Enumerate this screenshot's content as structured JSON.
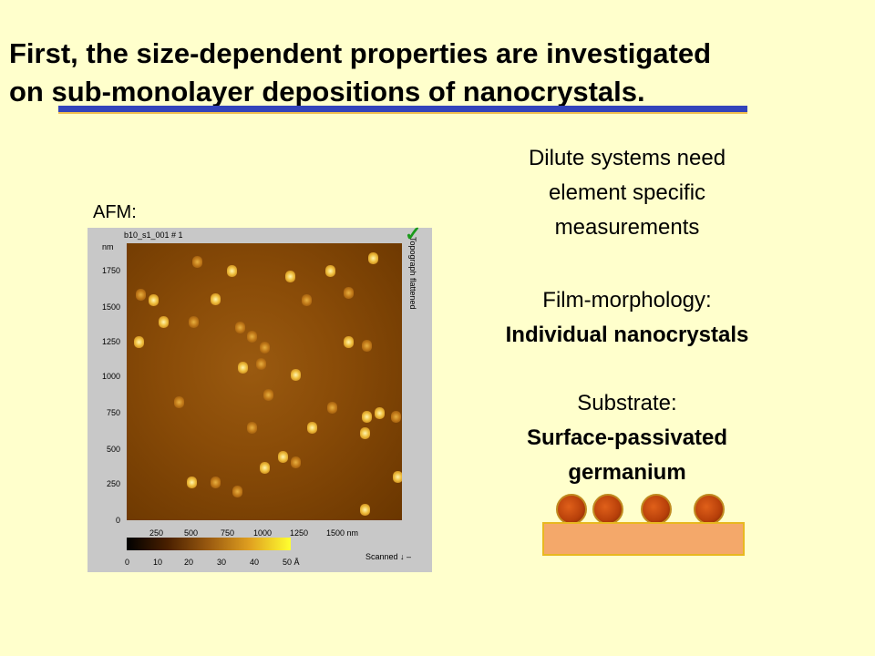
{
  "title": {
    "line1": "First, the size-dependent properties are investigated",
    "line2_prefix": "on ",
    "line2_underlined": "sub-monolayer depositions of nanocrystals",
    "line2_suffix": "."
  },
  "afm": {
    "label": "AFM:",
    "header_name": "b10_s1_001 # 1",
    "header_unit": "nm",
    "side_label": "Topograph flattened",
    "y_ticks": [
      "1750",
      "1500",
      "1250",
      "1000",
      "750",
      "500",
      "250",
      "0"
    ],
    "x_ticks": [
      "250",
      "500",
      "750",
      "1000",
      "1250",
      "1500 nm"
    ],
    "colorbar_ticks": [
      "0",
      "10",
      "20",
      "30",
      "40",
      "50 Å"
    ],
    "scanned_label": "Scanned ↓ –"
  },
  "right": {
    "para1_l1": "Dilute systems need",
    "para1_l2": "element specific",
    "para1_l3": "measurements",
    "morph_label": "Film-morphology:",
    "morph_value": "Individual nanocrystals",
    "sub_label": "Substrate:",
    "sub_value_l1": "Surface-passivated",
    "sub_value_l2": "germanium"
  },
  "colors": {
    "background": "#ffffcc",
    "underline": "#3344bb",
    "nanocrystal": "#c8501a",
    "substrate": "#f4a86a"
  }
}
